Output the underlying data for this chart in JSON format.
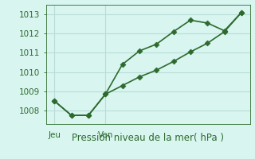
{
  "line1_x": [
    0,
    1,
    2,
    3,
    4,
    5,
    6,
    7,
    8,
    9,
    10,
    11
  ],
  "line1_y": [
    1008.5,
    1007.75,
    1007.75,
    1008.85,
    1010.4,
    1011.1,
    1011.45,
    1012.1,
    1012.7,
    1012.55,
    1012.15,
    1013.1
  ],
  "line2_x": [
    0,
    1,
    2,
    3,
    4,
    5,
    6,
    7,
    8,
    9,
    10,
    11
  ],
  "line2_y": [
    1008.5,
    1007.75,
    1007.75,
    1008.85,
    1009.3,
    1009.75,
    1010.1,
    1010.55,
    1011.05,
    1011.5,
    1012.1,
    1013.1
  ],
  "line_color": "#2d6a2d",
  "bg_color": "#d8f5f0",
  "grid_color": "#b8ddd8",
  "xlabel": "Pression niveau de la mer( hPa )",
  "yticks": [
    1008,
    1009,
    1010,
    1011,
    1012,
    1013
  ],
  "ylim": [
    1007.3,
    1013.5
  ],
  "xlim": [
    -0.5,
    11.5
  ],
  "jeu_x": 0,
  "ven_x": 3,
  "tick_color": "#2d6a2d",
  "label_fontsize": 8.5,
  "tick_fontsize": 7.5,
  "line_width": 1.2,
  "marker_size": 3.5
}
